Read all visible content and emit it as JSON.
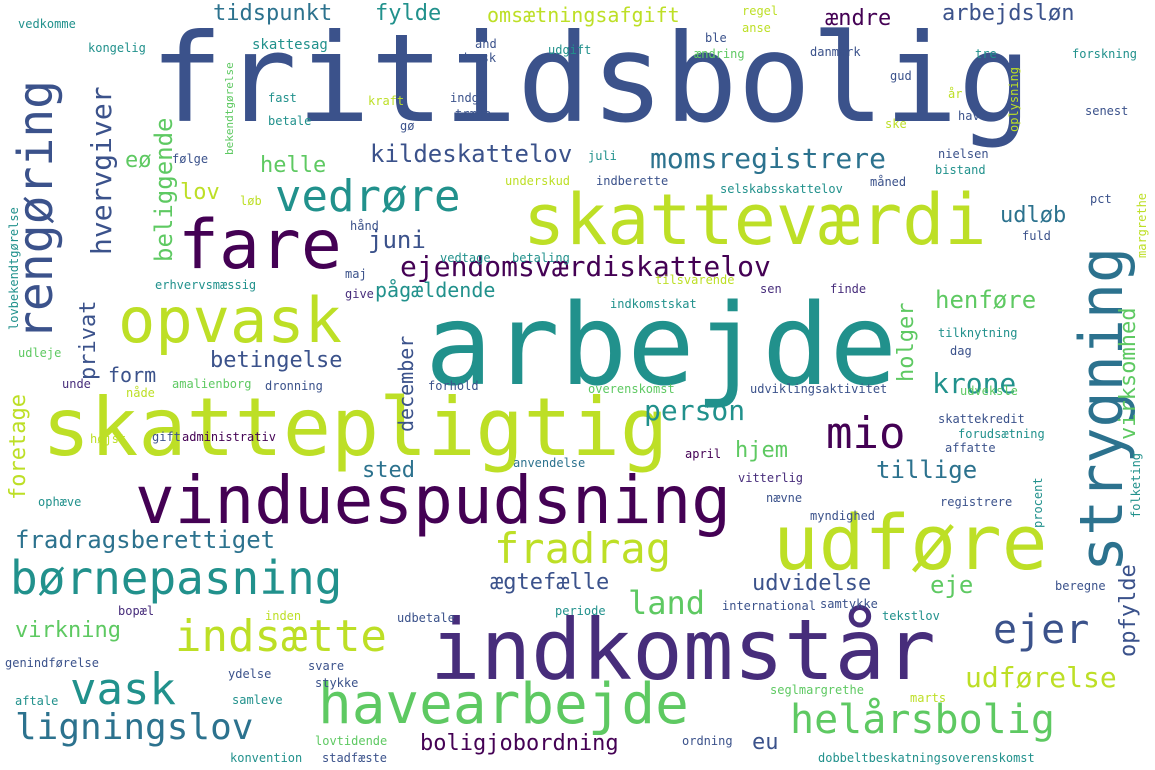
{
  "words": [
    {
      "text": "fritidsbolig",
      "color": "#3b528b"
    },
    {
      "text": "arbejde",
      "color": "#21918c"
    },
    {
      "text": "skattepligtig",
      "color": "#bddf26"
    },
    {
      "text": "vinduespudsning",
      "color": "#440154"
    },
    {
      "text": "indkomstår",
      "color": "#472d7b"
    },
    {
      "text": "udføre",
      "color": "#bddf26"
    },
    {
      "text": "skatteværdi",
      "color": "#bddf26"
    },
    {
      "text": "fare",
      "color": "#440154"
    },
    {
      "text": "strygning",
      "color": "#2c728e"
    },
    {
      "text": "opvask",
      "color": "#bddf26"
    },
    {
      "text": "havearbejde",
      "color": "#5ec962"
    },
    {
      "text": "børnepasning",
      "color": "#21918c"
    },
    {
      "text": "vedrøre",
      "color": "#21918c"
    },
    {
      "text": "rengøring",
      "color": "#3b528b"
    },
    {
      "text": "mio",
      "color": "#440154"
    },
    {
      "text": "fradrag",
      "color": "#bddf26"
    },
    {
      "text": "indsætte",
      "color": "#bddf26"
    },
    {
      "text": "helårsbolig",
      "color": "#5ec962"
    },
    {
      "text": "vask",
      "color": "#21918c"
    },
    {
      "text": "ligningslov",
      "color": "#2c728e"
    },
    {
      "text": "ejer",
      "color": "#3b528b"
    },
    {
      "text": "ejendomsværdiskattelov",
      "color": "#440154"
    },
    {
      "text": "momsregistrere",
      "color": "#2c728e"
    },
    {
      "text": "hvervgiver",
      "color": "#3b528b"
    },
    {
      "text": "person",
      "color": "#21918c"
    },
    {
      "text": "krone",
      "color": "#21918c"
    },
    {
      "text": "kildeskattelov",
      "color": "#3b528b"
    },
    {
      "text": "beliggende",
      "color": "#5ec962"
    },
    {
      "text": "fradragsberettiget",
      "color": "#2c728e"
    },
    {
      "text": "udførelse",
      "color": "#bddf26"
    },
    {
      "text": "land",
      "color": "#5ec962"
    },
    {
      "text": "juni",
      "color": "#3b528b"
    },
    {
      "text": "pågældende",
      "color": "#21918c"
    },
    {
      "text": "betingelse",
      "color": "#3b528b"
    },
    {
      "text": "tillige",
      "color": "#2c728e"
    },
    {
      "text": "boligjobordning",
      "color": "#440154"
    },
    {
      "text": "ægtefælle",
      "color": "#3b528b"
    },
    {
      "text": "udvidelse",
      "color": "#3b528b"
    },
    {
      "text": "virkning",
      "color": "#5ec962"
    },
    {
      "text": "henføre",
      "color": "#5ec962"
    },
    {
      "text": "virksomhed",
      "color": "#5ec962"
    },
    {
      "text": "opfylde",
      "color": "#3b528b"
    },
    {
      "text": "helle",
      "color": "#5ec962"
    },
    {
      "text": "lov",
      "color": "#bddf26"
    },
    {
      "text": "udløb",
      "color": "#2c728e"
    },
    {
      "text": "privat",
      "color": "#3b528b"
    },
    {
      "text": "form",
      "color": "#3b528b"
    },
    {
      "text": "december",
      "color": "#3b528b"
    },
    {
      "text": "hjem",
      "color": "#5ec962"
    },
    {
      "text": "holger",
      "color": "#5ec962"
    },
    {
      "text": "sted",
      "color": "#2c728e"
    },
    {
      "text": "foretage",
      "color": "#bddf26"
    },
    {
      "text": "eje",
      "color": "#5ec962"
    },
    {
      "text": "eu",
      "color": "#3b528b"
    },
    {
      "text": "tidspunkt",
      "color": "#2c728e"
    },
    {
      "text": "fylde",
      "color": "#21918c"
    },
    {
      "text": "omsætningsafgift",
      "color": "#bddf26"
    },
    {
      "text": "ændre",
      "color": "#440154"
    },
    {
      "text": "arbejdsløn",
      "color": "#3b528b"
    },
    {
      "text": "eø",
      "color": "#5ec962"
    },
    {
      "text": "skattesag",
      "color": "#21918c"
    },
    {
      "text": "vedkomme",
      "color": "#21918c"
    },
    {
      "text": "kongelig",
      "color": "#21918c"
    },
    {
      "text": "bekendtgørelse",
      "color": "#5ec962"
    },
    {
      "text": "lovbekendtgørelse",
      "color": "#21918c"
    },
    {
      "text": "tilsvarende",
      "color": "#bddf26"
    },
    {
      "text": "administrativ",
      "color": "#440154"
    },
    {
      "text": "gift",
      "color": "#3b528b"
    },
    {
      "text": "højst",
      "color": "#bddf26"
    },
    {
      "text": "unde",
      "color": "#472d7b"
    },
    {
      "text": "nåde",
      "color": "#bddf26"
    },
    {
      "text": "ophæve",
      "color": "#21918c"
    },
    {
      "text": "udleje",
      "color": "#5ec962"
    },
    {
      "text": "amalienborg",
      "color": "#5ec962"
    },
    {
      "text": "dronning",
      "color": "#3b528b"
    },
    {
      "text": "forhold",
      "color": "#3b528b"
    },
    {
      "text": "overenskomst",
      "color": "#5ec962"
    },
    {
      "text": "udviklingsaktivitet",
      "color": "#3b528b"
    },
    {
      "text": "anvendelse",
      "color": "#2c728e"
    },
    {
      "text": "april",
      "color": "#440154"
    },
    {
      "text": "vitterlig",
      "color": "#472d7b"
    },
    {
      "text": "nævne",
      "color": "#3b528b"
    },
    {
      "text": "myndighed",
      "color": "#3b528b"
    },
    {
      "text": "registrere",
      "color": "#3b528b"
    },
    {
      "text": "skattekredit",
      "color": "#3b528b"
    },
    {
      "text": "forudsætning",
      "color": "#21918c"
    },
    {
      "text": "affatte",
      "color": "#3b528b"
    },
    {
      "text": "udveksle",
      "color": "#5ec962"
    },
    {
      "text": "procent",
      "color": "#21918c"
    },
    {
      "text": "folketing",
      "color": "#21918c"
    },
    {
      "text": "tilknytning",
      "color": "#21918c"
    },
    {
      "text": "dag",
      "color": "#3b528b"
    },
    {
      "text": "sen",
      "color": "#472d7b"
    },
    {
      "text": "finde",
      "color": "#472d7b"
    },
    {
      "text": "indkomstskat",
      "color": "#21918c"
    },
    {
      "text": "erhvervsmæssig",
      "color": "#21918c"
    },
    {
      "text": "give",
      "color": "#472d7b"
    },
    {
      "text": "maj",
      "color": "#3b528b"
    },
    {
      "text": "vedtage",
      "color": "#21918c"
    },
    {
      "text": "betaling",
      "color": "#21918c"
    },
    {
      "text": "hånd",
      "color": "#3b528b"
    },
    {
      "text": "løb",
      "color": "#bddf26"
    },
    {
      "text": "følge",
      "color": "#3b528b"
    },
    {
      "text": "underskud",
      "color": "#bddf26"
    },
    {
      "text": "indberette",
      "color": "#3b528b"
    },
    {
      "text": "selskabsskattelov",
      "color": "#21918c"
    },
    {
      "text": "måned",
      "color": "#3b528b"
    },
    {
      "text": "bistand",
      "color": "#21918c"
    },
    {
      "text": "nielsen",
      "color": "#3b528b"
    },
    {
      "text": "margrethe",
      "color": "#bddf26"
    },
    {
      "text": "pct",
      "color": "#3b528b"
    },
    {
      "text": "fuld",
      "color": "#3b528b"
    },
    {
      "text": "juli",
      "color": "#21918c"
    },
    {
      "text": "senest",
      "color": "#3b528b"
    },
    {
      "text": "oplysning",
      "color": "#bddf26"
    },
    {
      "text": "hav",
      "color": "#3b528b"
    },
    {
      "text": "ske",
      "color": "#bddf26"
    },
    {
      "text": "år",
      "color": "#bddf26"
    },
    {
      "text": "gud",
      "color": "#3b528b"
    },
    {
      "text": "tre",
      "color": "#21918c"
    },
    {
      "text": "forskning",
      "color": "#21918c"
    },
    {
      "text": "danmark",
      "color": "#3b528b"
    },
    {
      "text": "ændring",
      "color": "#5ec962"
    },
    {
      "text": "anse",
      "color": "#bddf26"
    },
    {
      "text": "regel",
      "color": "#bddf26"
    },
    {
      "text": "ble",
      "color": "#3b528b"
    },
    {
      "text": "udgift",
      "color": "#21918c"
    },
    {
      "text": "and",
      "color": "#3b528b"
    },
    {
      "text": "dansk",
      "color": "#3b528b"
    },
    {
      "text": "indgå",
      "color": "#3b528b"
    },
    {
      "text": "træde",
      "color": "#3b528b"
    },
    {
      "text": "fast",
      "color": "#21918c"
    },
    {
      "text": "kraft",
      "color": "#bddf26"
    },
    {
      "text": "betale",
      "color": "#21918c"
    },
    {
      "text": "gø",
      "color": "#3b528b"
    },
    {
      "text": "genindførelse",
      "color": "#3b528b"
    },
    {
      "text": "aftale",
      "color": "#21918c"
    },
    {
      "text": "bopæl",
      "color": "#472d7b"
    },
    {
      "text": "inden",
      "color": "#bddf26"
    },
    {
      "text": "periode",
      "color": "#21918c"
    },
    {
      "text": "ydelse",
      "color": "#3b528b"
    },
    {
      "text": "svare",
      "color": "#3b528b"
    },
    {
      "text": "stykke",
      "color": "#3b528b"
    },
    {
      "text": "samleve",
      "color": "#21918c"
    },
    {
      "text": "konvention",
      "color": "#21918c"
    },
    {
      "text": "stadfæste",
      "color": "#3b528b"
    },
    {
      "text": "lovtidende",
      "color": "#5ec962"
    },
    {
      "text": "udbetale",
      "color": "#3b528b"
    },
    {
      "text": "international",
      "color": "#3b528b"
    },
    {
      "text": "samtykke",
      "color": "#3b528b"
    },
    {
      "text": "tekstlov",
      "color": "#21918c"
    },
    {
      "text": "beregne",
      "color": "#3b528b"
    },
    {
      "text": "seglmargrethe",
      "color": "#5ec962"
    },
    {
      "text": "marts",
      "color": "#bddf26"
    },
    {
      "text": "ordning",
      "color": "#3b528b"
    },
    {
      "text": "dobbeltbeskatningsoverenskomst",
      "color": "#21918c"
    }
  ]
}
